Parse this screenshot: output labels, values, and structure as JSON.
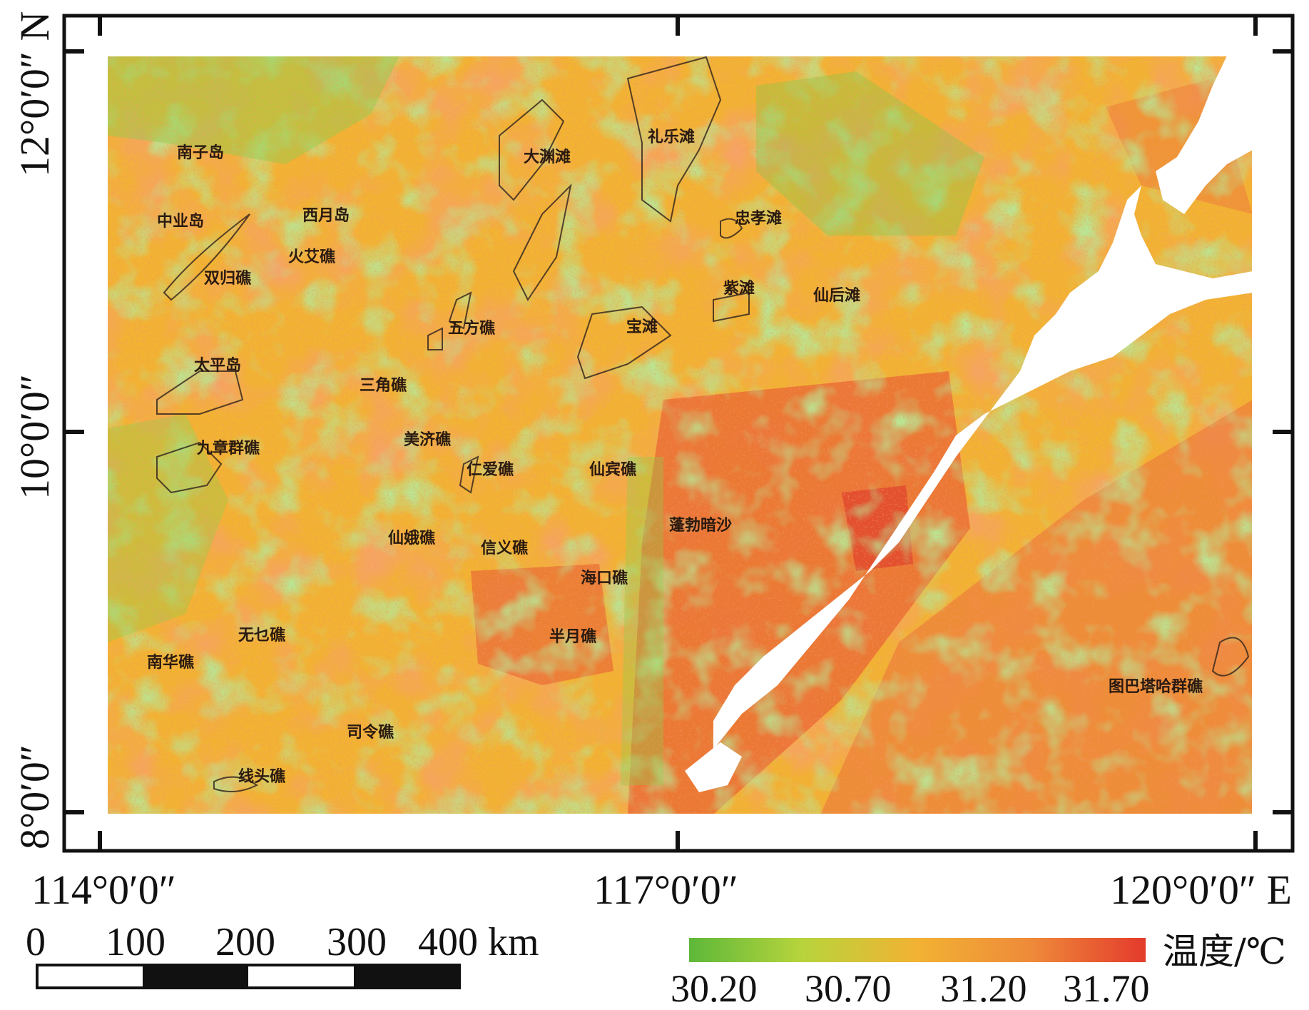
{
  "map": {
    "latitudes": [
      "12°0′0″ N",
      "10°0′0″",
      "8°0′0″"
    ],
    "longitudes": [
      "114°0′0″",
      "117°0′0″",
      "120°0′0″ E"
    ],
    "places": [
      "南子岛",
      "中业岛",
      "西月岛",
      "火艾礁",
      "双归礁",
      "大渊滩",
      "礼乐滩",
      "忠孝滩",
      "五方礁",
      "紫滩",
      "仙后滩",
      "宝滩",
      "太平岛",
      "三角礁",
      "九章群礁",
      "美济礁",
      "仁爱礁",
      "仙宾礁",
      "蓬勃暗沙",
      "仙娥礁",
      "信义礁",
      "海口礁",
      "无乜礁",
      "半月礁",
      "南华礁",
      "司令礁",
      "图巴塔哈群礁",
      "线头礁"
    ],
    "colors": {
      "cool": "#7cc84a",
      "mid": "#f2b233",
      "warm": "#ee8a3a",
      "hot": "#e8432e",
      "land": "#ffffff"
    }
  },
  "scale_bar": {
    "ticks": [
      "0",
      "100",
      "200",
      "300",
      "400 km"
    ]
  },
  "legend": {
    "title": "温度/℃",
    "ticks": [
      "30.20",
      "30.70",
      "31.20",
      "31.70"
    ],
    "gradient": [
      "#5db83a",
      "#b8d43c",
      "#f2b233",
      "#ee8a3a",
      "#e43a2c"
    ]
  }
}
